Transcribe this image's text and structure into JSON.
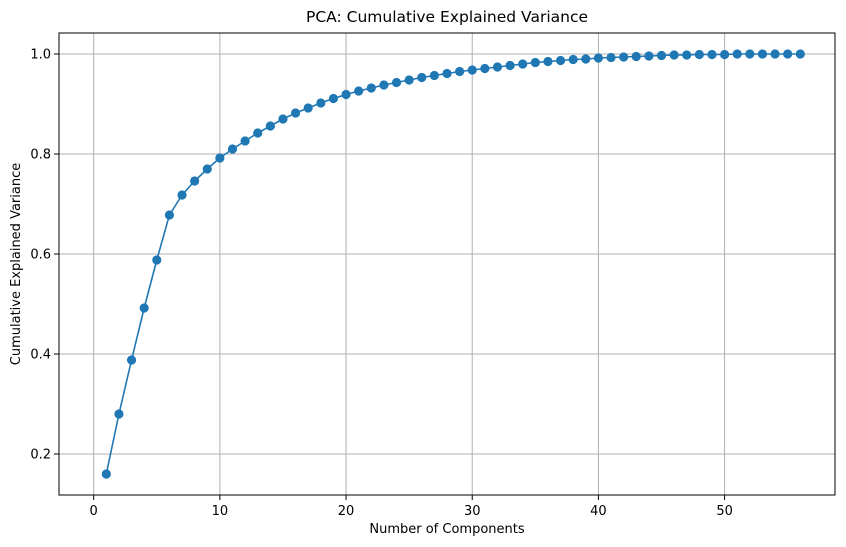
{
  "chart_data": {
    "type": "line",
    "title": "PCA: Cumulative Explained Variance",
    "xlabel": "Number of Components",
    "ylabel": "Cumulative Explained Variance",
    "xlim": [
      -2.75,
      58.75
    ],
    "ylim": [
      0.118,
      1.042
    ],
    "xticks": [
      0,
      10,
      20,
      30,
      40,
      50
    ],
    "yticks": [
      0.2,
      0.4,
      0.6,
      0.8,
      1.0
    ],
    "xtick_labels": [
      "0",
      "10",
      "20",
      "30",
      "40",
      "50"
    ],
    "ytick_labels": [
      "0.2",
      "0.4",
      "0.6",
      "0.8",
      "1.0"
    ],
    "grid": true,
    "marker": "circle",
    "colors": {
      "series": "#1f77b4",
      "grid": "#b0b0b0",
      "axis": "#000000"
    },
    "x": [
      1,
      2,
      3,
      4,
      5,
      6,
      7,
      8,
      9,
      10,
      11,
      12,
      13,
      14,
      15,
      16,
      17,
      18,
      19,
      20,
      21,
      22,
      23,
      24,
      25,
      26,
      27,
      28,
      29,
      30,
      31,
      32,
      33,
      34,
      35,
      36,
      37,
      38,
      39,
      40,
      41,
      42,
      43,
      44,
      45,
      46,
      47,
      48,
      49,
      50,
      51,
      52,
      53,
      54,
      55,
      56
    ],
    "series": [
      {
        "values": [
          0.16,
          0.28,
          0.388,
          0.492,
          0.588,
          0.678,
          0.718,
          0.746,
          0.77,
          0.792,
          0.81,
          0.826,
          0.842,
          0.856,
          0.87,
          0.882,
          0.892,
          0.902,
          0.911,
          0.919,
          0.926,
          0.932,
          0.938,
          0.943,
          0.948,
          0.953,
          0.957,
          0.961,
          0.965,
          0.968,
          0.971,
          0.974,
          0.977,
          0.98,
          0.983,
          0.985,
          0.987,
          0.989,
          0.99,
          0.992,
          0.993,
          0.994,
          0.995,
          0.996,
          0.997,
          0.998,
          0.998,
          0.999,
          0.999,
          0.999,
          1.0,
          1.0,
          1.0,
          1.0,
          1.0,
          1.0
        ]
      }
    ]
  }
}
